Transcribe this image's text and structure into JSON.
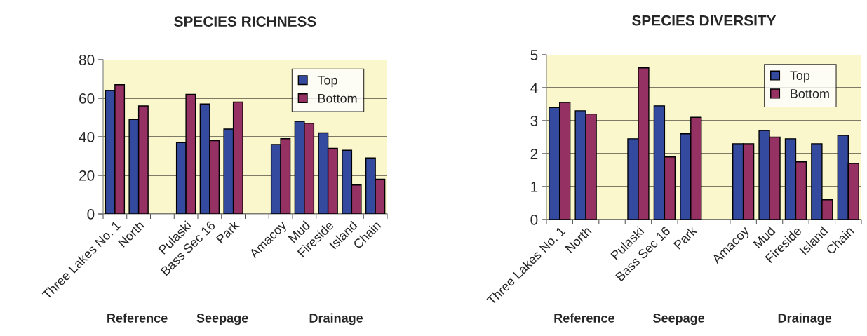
{
  "chart_data": [
    {
      "type": "bar",
      "title": "SPECIES RICHNESS",
      "categories": [
        "Three Lakes No. 1",
        "North",
        null,
        "Pulaski",
        "Bass Sec 16",
        "Park",
        null,
        "Amacoy",
        "Mud",
        "Fireside",
        "Island",
        "Chain"
      ],
      "series": [
        {
          "name": "Top",
          "color": "#334a9f",
          "values": [
            64,
            49,
            null,
            37,
            57,
            44,
            null,
            36,
            48,
            42,
            33,
            29
          ]
        },
        {
          "name": "Bottom",
          "color": "#953163",
          "values": [
            67,
            56,
            null,
            62,
            38,
            58,
            null,
            39,
            47,
            34,
            15,
            18
          ]
        }
      ],
      "ylim": [
        0,
        80
      ],
      "yticks": [
        0,
        20,
        40,
        60,
        80
      ],
      "grid": "y",
      "legend": "top right",
      "annotations": [
        "Reference",
        "Seepage",
        "Drainage"
      ]
    },
    {
      "type": "bar",
      "title": "SPECIES DIVERSITY",
      "categories": [
        "Three Lakes No. 1",
        "North",
        null,
        "Pulaski",
        "Bass Sec 16",
        "Park",
        null,
        "Amacoy",
        "Mud",
        "Fireside",
        "Island",
        "Chain"
      ],
      "series": [
        {
          "name": "Top",
          "color": "#334a9f",
          "values": [
            3.4,
            3.3,
            null,
            2.45,
            3.45,
            2.6,
            null,
            2.3,
            2.7,
            2.45,
            2.3,
            2.55
          ]
        },
        {
          "name": "Bottom",
          "color": "#953163",
          "values": [
            3.55,
            3.2,
            null,
            4.6,
            1.9,
            3.1,
            null,
            2.3,
            2.5,
            1.75,
            0.6,
            1.7
          ]
        }
      ],
      "ylim": [
        0,
        5
      ],
      "yticks": [
        0,
        1,
        2,
        3,
        4,
        5
      ],
      "grid": "y",
      "legend": "top right",
      "annotations": [
        "Reference",
        "Seepage",
        "Drainage"
      ]
    }
  ]
}
